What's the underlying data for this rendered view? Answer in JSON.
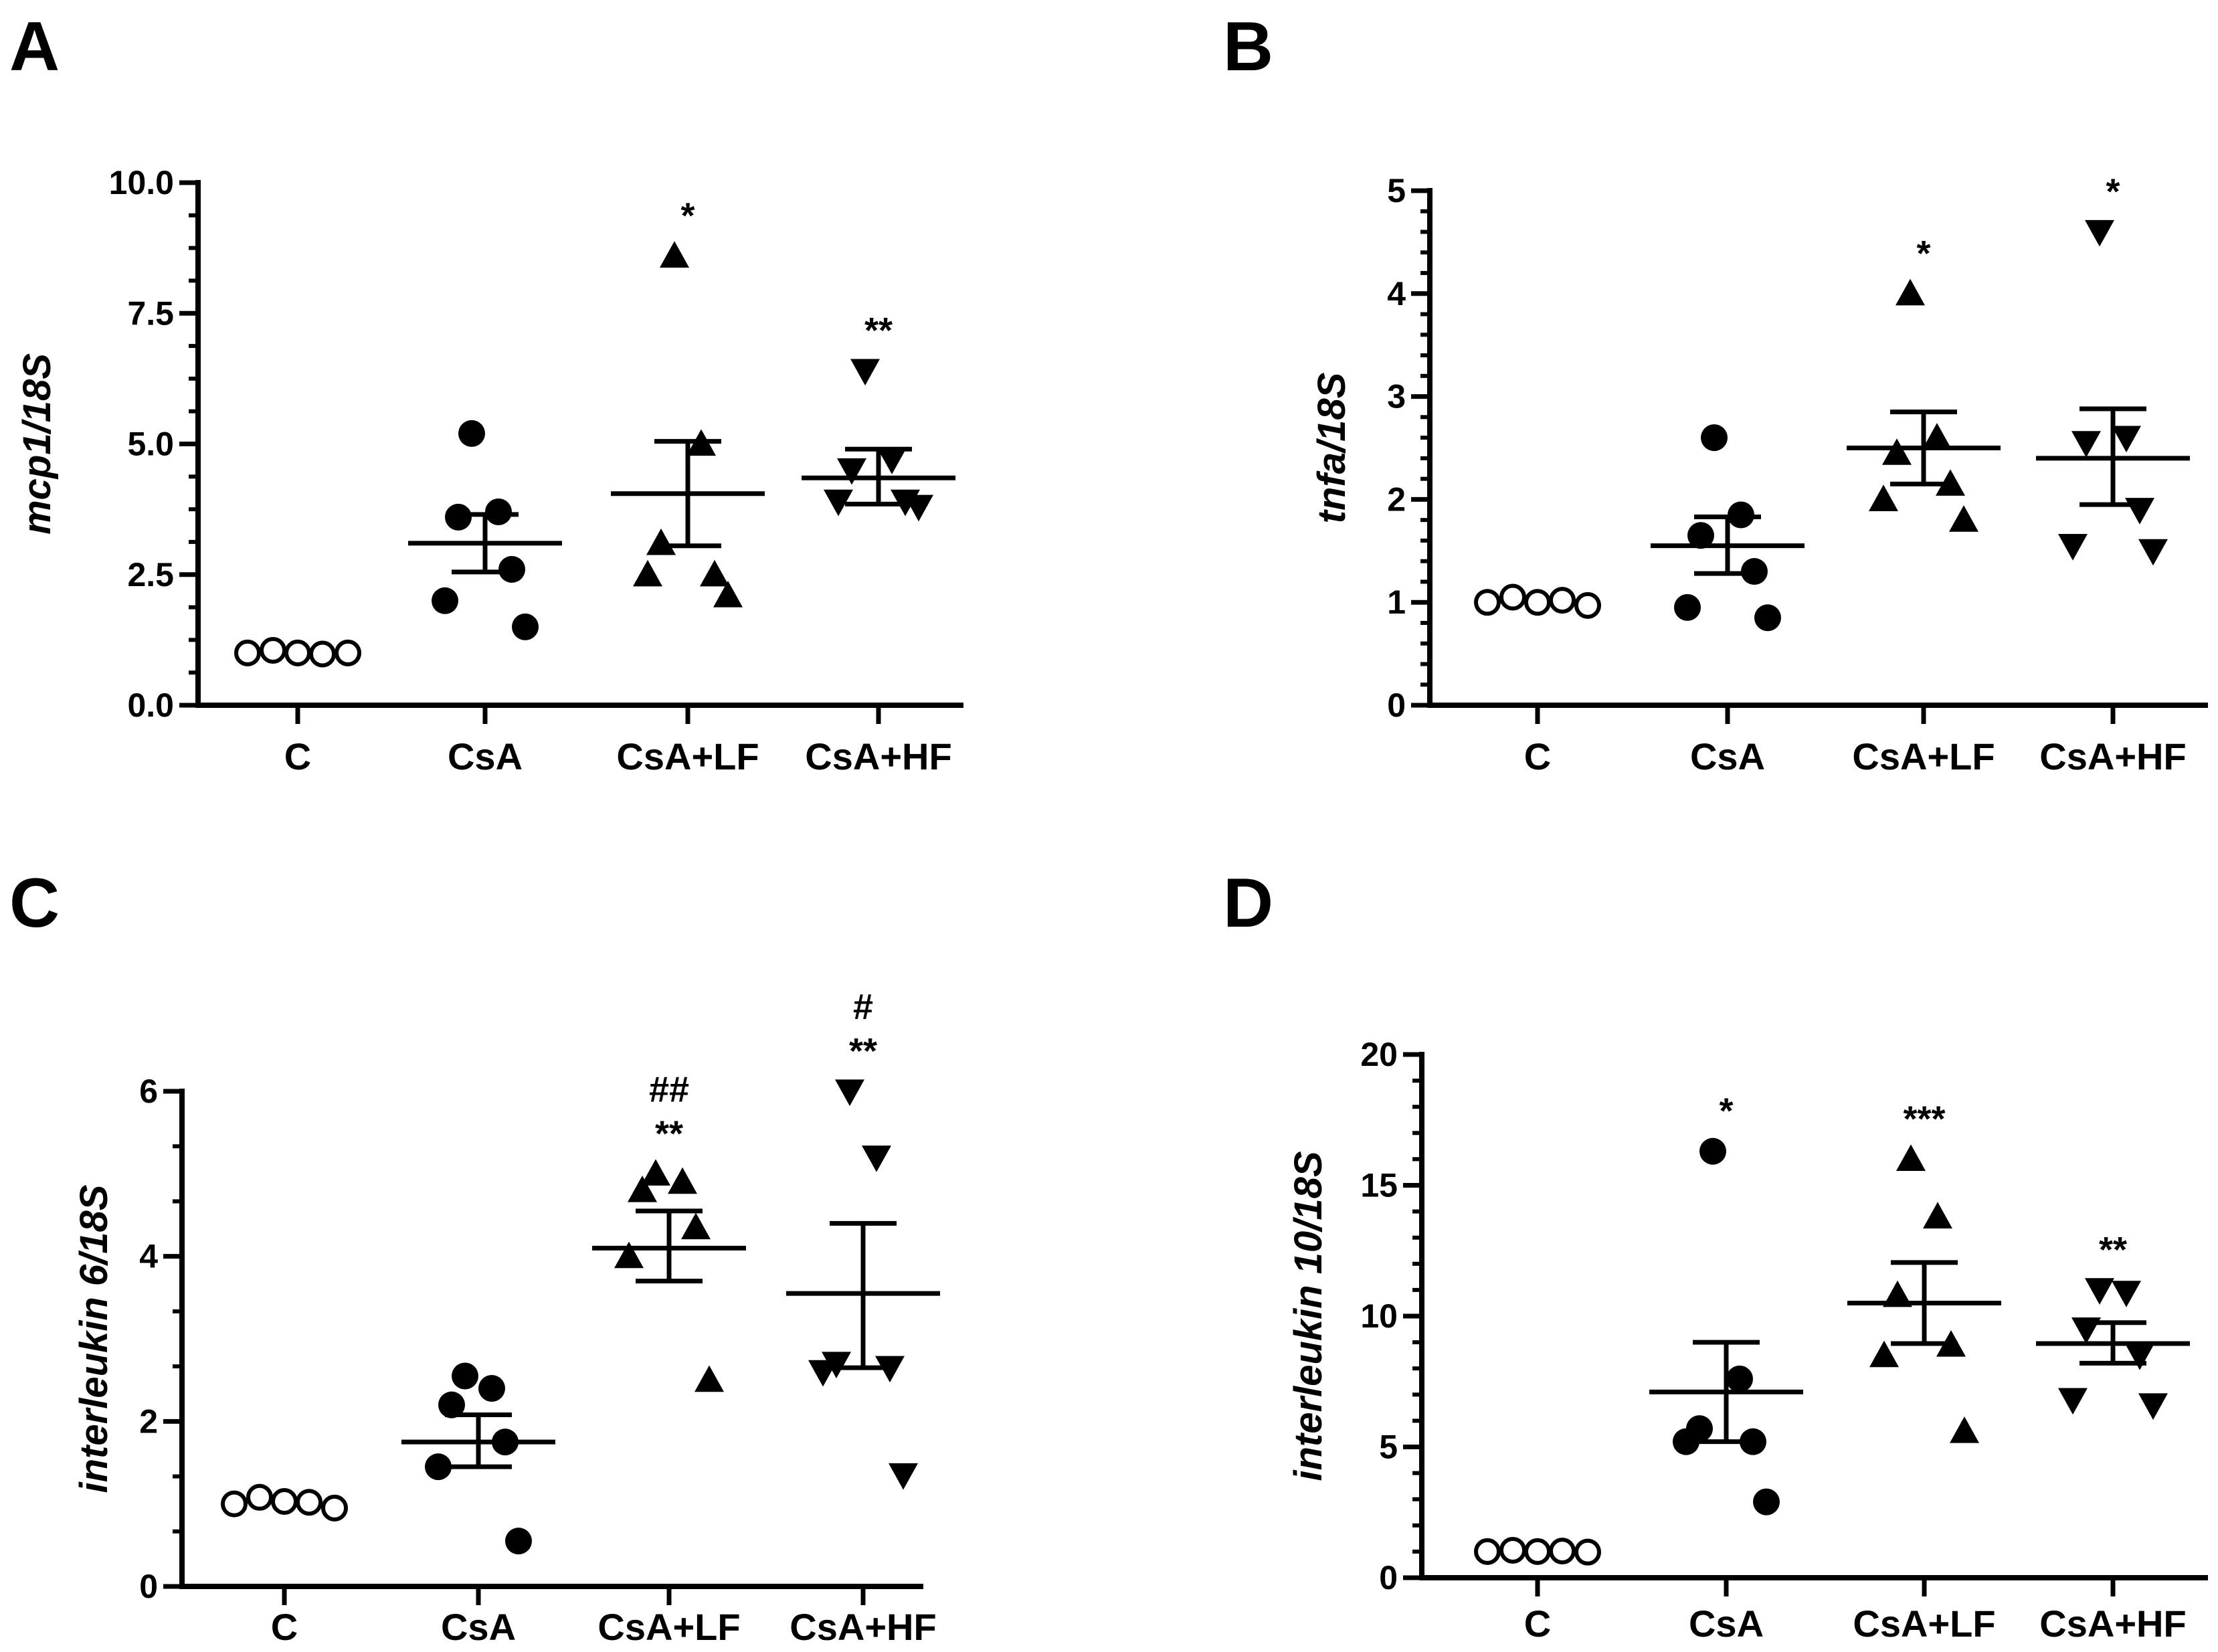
{
  "figure": {
    "panel_labels": [
      "A",
      "B",
      "C",
      "D"
    ]
  },
  "chart_data": [
    {
      "panel": "A",
      "type": "scatter",
      "ylabel": "mcp1/18S",
      "categories": [
        "C",
        "CsA",
        "CsA+LF",
        "CsA+HF"
      ],
      "ylim": [
        0,
        10
      ],
      "yticks": [
        0.0,
        2.5,
        5.0,
        7.5,
        10.0
      ],
      "ytick_labels": [
        "0.0",
        "2.5",
        "5.0",
        "7.5",
        "10.0"
      ],
      "markers": [
        "circle-open",
        "circle",
        "triangle-up",
        "triangle-down"
      ],
      "groups": [
        {
          "name": "C",
          "points": [
            1.0,
            1.05,
            1.0,
            0.98,
            1.0
          ],
          "mean": null,
          "sem_low": null,
          "sem_high": null,
          "annotation": []
        },
        {
          "name": "CsA",
          "points": [
            5.2,
            3.7,
            3.6,
            2.6,
            2.0,
            1.5
          ],
          "mean": 3.1,
          "sem_low": 2.55,
          "sem_high": 3.65,
          "annotation": []
        },
        {
          "name": "CsA+LF",
          "points": [
            8.6,
            5.0,
            3.1,
            2.5,
            2.5,
            2.1
          ],
          "mean": 4.05,
          "sem_low": 3.05,
          "sem_high": 5.05,
          "annotation": [
            "*"
          ]
        },
        {
          "name": "CsA+HF",
          "points": [
            6.4,
            4.7,
            4.5,
            3.9,
            3.9,
            3.8
          ],
          "mean": 4.35,
          "sem_low": 3.85,
          "sem_high": 4.9,
          "annotation": [
            "**"
          ]
        }
      ]
    },
    {
      "panel": "B",
      "type": "scatter",
      "ylabel": "tnfa/18S",
      "categories": [
        "C",
        "CsA",
        "CsA+LF",
        "CsA+HF"
      ],
      "ylim": [
        0,
        5
      ],
      "yticks": [
        0,
        1,
        2,
        3,
        4,
        5
      ],
      "ytick_labels": [
        "0",
        "1",
        "2",
        "3",
        "4",
        "5"
      ],
      "markers": [
        "circle-open",
        "circle",
        "triangle-up",
        "triangle-down"
      ],
      "groups": [
        {
          "name": "C",
          "points": [
            1.0,
            1.05,
            1.0,
            1.02,
            0.97
          ],
          "mean": null,
          "sem_low": null,
          "sem_high": null,
          "annotation": []
        },
        {
          "name": "CsA",
          "points": [
            2.6,
            1.85,
            1.65,
            1.3,
            0.95,
            0.85
          ],
          "mean": 1.55,
          "sem_low": 1.28,
          "sem_high": 1.83,
          "annotation": []
        },
        {
          "name": "CsA+LF",
          "points": [
            4.0,
            2.6,
            2.45,
            2.15,
            2.0,
            1.8
          ],
          "mean": 2.5,
          "sem_low": 2.15,
          "sem_high": 2.85,
          "annotation": [
            "*"
          ]
        },
        {
          "name": "CsA+HF",
          "points": [
            4.6,
            2.6,
            2.55,
            1.9,
            1.55,
            1.5
          ],
          "mean": 2.4,
          "sem_low": 1.95,
          "sem_high": 2.88,
          "annotation": [
            "*"
          ]
        }
      ]
    },
    {
      "panel": "C",
      "type": "scatter",
      "ylabel": "interleukin 6/18S",
      "categories": [
        "C",
        "CsA",
        "CsA+LF",
        "CsA+HF"
      ],
      "ylim": [
        0,
        6
      ],
      "yticks": [
        0,
        2,
        4,
        6
      ],
      "ytick_labels": [
        "0",
        "2",
        "4",
        "6"
      ],
      "markers": [
        "circle-open",
        "circle",
        "triangle-up",
        "triangle-down"
      ],
      "groups": [
        {
          "name": "C",
          "points": [
            1.0,
            1.08,
            1.03,
            1.02,
            0.95
          ],
          "mean": null,
          "sem_low": null,
          "sem_high": null,
          "annotation": []
        },
        {
          "name": "CsA",
          "points": [
            2.55,
            2.4,
            2.2,
            1.75,
            1.45,
            0.55
          ],
          "mean": 1.75,
          "sem_low": 1.45,
          "sem_high": 2.08,
          "annotation": []
        },
        {
          "name": "CsA+LF",
          "points": [
            5.0,
            4.9,
            4.8,
            4.35,
            4.0,
            2.5
          ],
          "mean": 4.1,
          "sem_low": 3.7,
          "sem_high": 4.55,
          "annotation": [
            "**",
            "##"
          ]
        },
        {
          "name": "CsA+HF",
          "points": [
            6.0,
            5.2,
            2.7,
            2.65,
            2.6,
            1.35
          ],
          "mean": 3.55,
          "sem_low": 2.65,
          "sem_high": 4.4,
          "annotation": [
            "**",
            "#"
          ]
        }
      ]
    },
    {
      "panel": "D",
      "type": "scatter",
      "ylabel": "interleukin 10/18S",
      "categories": [
        "C",
        "CsA",
        "CsA+LF",
        "CsA+HF"
      ],
      "ylim": [
        0,
        20
      ],
      "yticks": [
        0,
        5,
        10,
        15,
        20
      ],
      "ytick_labels": [
        "0",
        "5",
        "10",
        "15",
        "20"
      ],
      "markers": [
        "circle-open",
        "circle",
        "triangle-up",
        "triangle-down"
      ],
      "groups": [
        {
          "name": "C",
          "points": [
            1.0,
            1.05,
            1.0,
            1.02,
            0.98
          ],
          "mean": null,
          "sem_low": null,
          "sem_high": null,
          "annotation": []
        },
        {
          "name": "CsA",
          "points": [
            16.3,
            7.6,
            5.7,
            5.2,
            5.2,
            2.9
          ],
          "mean": 7.1,
          "sem_low": 5.2,
          "sem_high": 9.0,
          "annotation": [
            "*"
          ]
        },
        {
          "name": "CsA+LF",
          "points": [
            16.0,
            13.8,
            10.8,
            8.9,
            8.5,
            5.6
          ],
          "mean": 10.5,
          "sem_low": 8.95,
          "sem_high": 12.05,
          "annotation": [
            "***"
          ]
        },
        {
          "name": "CsA+HF",
          "points": [
            11.0,
            10.9,
            9.5,
            8.5,
            6.8,
            6.6
          ],
          "mean": 8.95,
          "sem_low": 8.2,
          "sem_high": 9.75,
          "annotation": [
            "**"
          ]
        }
      ]
    }
  ]
}
